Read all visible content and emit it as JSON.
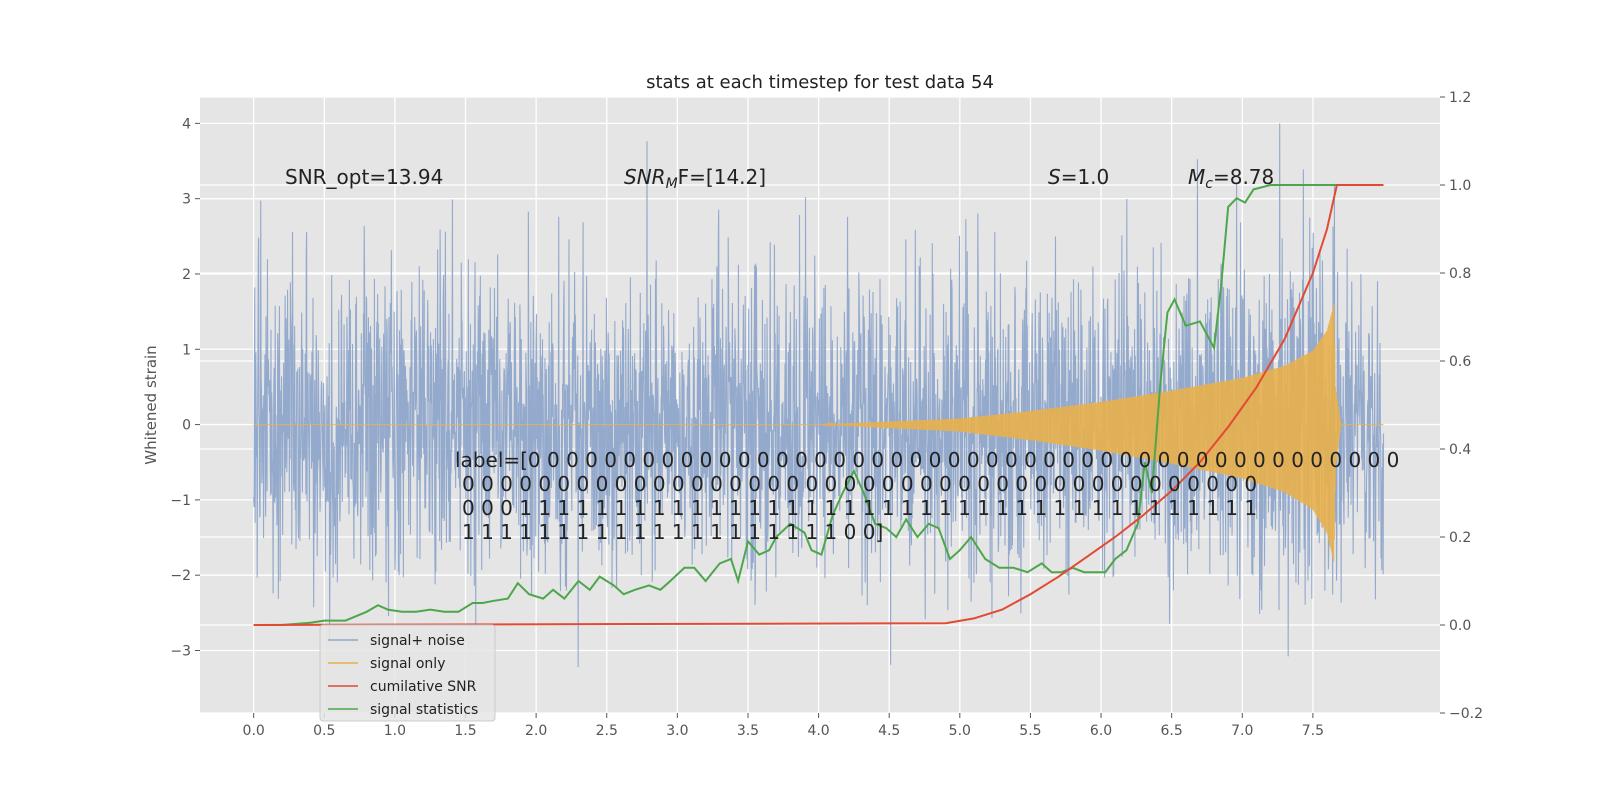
{
  "chart_data": {
    "type": "line",
    "title": "stats at each timestep for test data 54",
    "ylabel": "Whitened strain",
    "xlim": [
      -0.38,
      8.4
    ],
    "ylim": [
      -3.83,
      4.35
    ],
    "y2lim": [
      -0.2,
      1.2
    ],
    "x_ticks": [
      0.0,
      0.5,
      1.0,
      1.5,
      2.0,
      2.5,
      3.0,
      3.5,
      4.0,
      4.5,
      5.0,
      5.5,
      6.0,
      6.5,
      7.0,
      7.5
    ],
    "x_tick_labels": [
      "0.0",
      "0.5",
      "1.0",
      "1.5",
      "2.0",
      "2.5",
      "3.0",
      "3.5",
      "4.0",
      "4.5",
      "5.0",
      "5.5",
      "6.0",
      "6.5",
      "7.0",
      "7.5"
    ],
    "y_ticks": [
      -3,
      -2,
      -1,
      0,
      1,
      2,
      3,
      4
    ],
    "y_tick_labels": [
      "−3",
      "−2",
      "−1",
      "0",
      "1",
      "2",
      "3",
      "4"
    ],
    "y2_ticks": [
      -0.2,
      0.0,
      0.2,
      0.4,
      0.6,
      0.8,
      1.0,
      1.2
    ],
    "y2_tick_labels": [
      "−0.2",
      "0.0",
      "0.2",
      "0.4",
      "0.6",
      "0.8",
      "1.0",
      "1.2"
    ],
    "grid": true,
    "legend_position": "lower-left",
    "annotations": {
      "snr_opt": "SNR_opt=13.94",
      "snr_mf_base": "SNR",
      "snr_mf_sub": "M",
      "snr_mf_rest": "F=[14.2]",
      "s_var": "S",
      "s_rest": "=1.0",
      "mc_var": "M",
      "mc_sub": "c",
      "mc_rest": "=8.78"
    },
    "label_lines": [
      "label=[0 0 0 0 0 0 0 0 0 0 0 0 0 0 0 0 0 0 0 0 0 0 0 0 0 0 0 0 0 0 0 0 0 0 0 0 0 0 0 0 0 0 0 0 0 0",
      "0 0 0 0 0 0 0 0 0 0 0 0 0 0 0 0 0 0 0 0 0 0 0 0 0 0 0 0 0 0 0 0 0 0 0 0 0 0 0 0 0 0",
      "0 0 0 1 1 1 1 1 1 1 1 1 1 1 1 1 1 1 1 1 1 1 1 1 1 1 1 1 1 1 1 1 1 1 1 1 1 1 1 1 1 1",
      "1 1 1 1 1 1 1 1 1 1 1 1 1 1 1 1 1 1 1 1 0 0]"
    ],
    "series": [
      {
        "name": "signal+ noise",
        "color": "#8fa6cb",
        "axis": "left",
        "x_range": [
          0.0,
          8.0
        ],
        "envelope_p95": 2.0,
        "peak_max": 4.0,
        "peak_min": -3.5
      },
      {
        "name": "signal only",
        "color": "#e8b04d",
        "axis": "left",
        "x_range": [
          0.0,
          8.0
        ],
        "amplitude_envelope": {
          "x": [
            0.0,
            4.0,
            5.0,
            5.5,
            6.0,
            6.5,
            7.0,
            7.3,
            7.5,
            7.6,
            7.65,
            7.66,
            7.7,
            8.0
          ],
          "a": [
            0.0,
            0.0,
            0.08,
            0.18,
            0.3,
            0.45,
            0.62,
            0.78,
            0.98,
            1.25,
            1.6,
            0.5,
            0.0,
            0.0
          ]
        },
        "peak_max": 1.6,
        "peak_min": -2.1
      },
      {
        "name": "cumilative SNR",
        "color": "#e24a33",
        "axis": "right",
        "x": [
          0.0,
          4.9,
          5.1,
          5.3,
          5.5,
          5.7,
          5.9,
          6.1,
          6.3,
          6.5,
          6.7,
          6.9,
          7.1,
          7.3,
          7.5,
          7.6,
          7.67,
          8.0
        ],
        "y": [
          0.0,
          0.004,
          0.015,
          0.035,
          0.07,
          0.11,
          0.155,
          0.2,
          0.25,
          0.305,
          0.37,
          0.45,
          0.54,
          0.65,
          0.8,
          0.9,
          1.0,
          1.0
        ]
      },
      {
        "name": "signal statistics",
        "color": "#4ea64b",
        "axis": "right",
        "x": [
          0.0,
          0.2,
          0.4,
          0.5,
          0.65,
          0.8,
          0.88,
          0.95,
          1.05,
          1.15,
          1.25,
          1.35,
          1.45,
          1.55,
          1.62,
          1.7,
          1.8,
          1.87,
          1.95,
          2.05,
          2.12,
          2.2,
          2.3,
          2.38,
          2.45,
          2.55,
          2.62,
          2.7,
          2.8,
          2.88,
          2.95,
          3.05,
          3.12,
          3.2,
          3.3,
          3.38,
          3.43,
          3.5,
          3.58,
          3.65,
          3.7,
          3.8,
          3.9,
          3.95,
          4.02,
          4.1,
          4.17,
          4.25,
          4.32,
          4.4,
          4.48,
          4.55,
          4.62,
          4.7,
          4.78,
          4.85,
          4.93,
          5.0,
          5.08,
          5.18,
          5.28,
          5.38,
          5.48,
          5.58,
          5.65,
          5.72,
          5.8,
          5.88,
          5.95,
          6.03,
          6.1,
          6.18,
          6.26,
          6.31,
          6.36,
          6.42,
          6.47,
          6.52,
          6.6,
          6.7,
          6.8,
          6.85,
          6.9,
          6.96,
          7.02,
          7.08,
          7.2,
          7.4,
          7.6,
          8.0
        ],
        "y": [
          0.0,
          0.0,
          0.005,
          0.01,
          0.01,
          0.03,
          0.045,
          0.035,
          0.03,
          0.03,
          0.035,
          0.03,
          0.03,
          0.05,
          0.05,
          0.055,
          0.06,
          0.095,
          0.07,
          0.06,
          0.08,
          0.06,
          0.1,
          0.08,
          0.11,
          0.09,
          0.07,
          0.08,
          0.09,
          0.08,
          0.1,
          0.13,
          0.13,
          0.1,
          0.14,
          0.15,
          0.1,
          0.19,
          0.16,
          0.17,
          0.2,
          0.23,
          0.21,
          0.17,
          0.16,
          0.25,
          0.3,
          0.35,
          0.3,
          0.23,
          0.22,
          0.2,
          0.24,
          0.2,
          0.23,
          0.22,
          0.15,
          0.17,
          0.2,
          0.15,
          0.13,
          0.13,
          0.12,
          0.14,
          0.12,
          0.12,
          0.13,
          0.12,
          0.12,
          0.12,
          0.15,
          0.17,
          0.23,
          0.37,
          0.3,
          0.55,
          0.71,
          0.74,
          0.68,
          0.69,
          0.63,
          0.77,
          0.95,
          0.97,
          0.96,
          0.99,
          1.0,
          1.0,
          1.0,
          1.0
        ]
      }
    ]
  }
}
